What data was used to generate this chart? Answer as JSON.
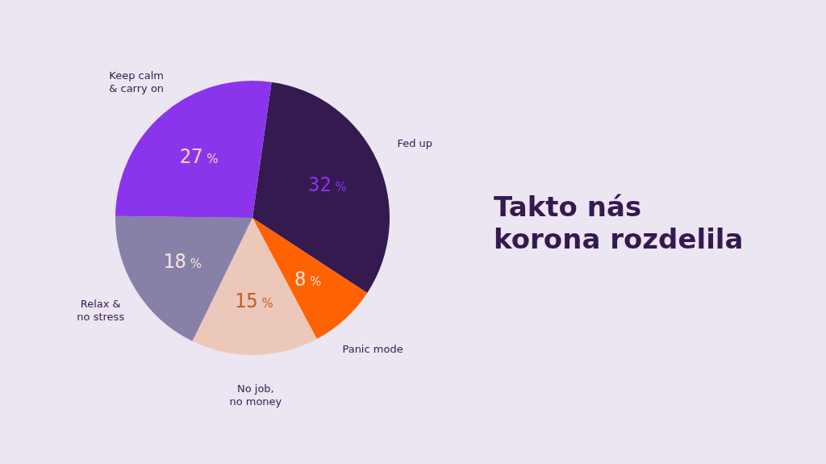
{
  "chart_data": {
    "type": "pie",
    "title": "Takto nás korona rozdelila",
    "categories": [
      "Fed up",
      "Panic mode",
      "No job,\nno money",
      "Relax &\nno stress",
      "Keep calm\n& carry on"
    ],
    "values": [
      32,
      8,
      15,
      18,
      27
    ],
    "colors": [
      "#341a4e",
      "#ff6200",
      "#ecc8bb",
      "#8781a8",
      "#8a35ec"
    ],
    "value_labels": [
      "32 %",
      "8 %",
      "15 %",
      "18 %",
      "27 %"
    ],
    "legend": false
  }
}
